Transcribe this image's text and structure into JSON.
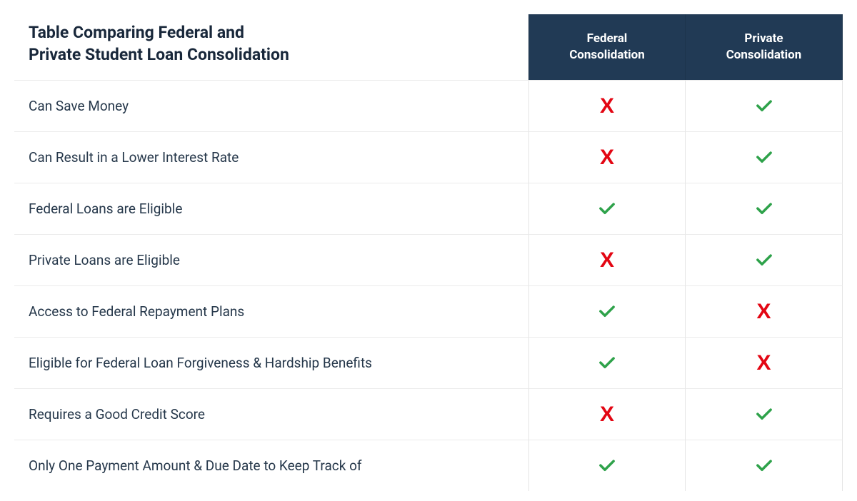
{
  "title": "Table Comparing Federal and\nPrivate Student Loan Consolidation",
  "colors": {
    "header_bg": "#213a55",
    "header_text": "#ffffff",
    "title_text": "#18273a",
    "feature_text": "#25374a",
    "check": "#2ea24a",
    "x": "#e30613",
    "row_border": "rgba(0,0,0,0.08)"
  },
  "columns": [
    {
      "id": "federal",
      "label": "Federal\nConsolidation"
    },
    {
      "id": "private",
      "label": "Private\nConsolidation"
    }
  ],
  "rows": [
    {
      "feature": "Can Save Money",
      "federal": "x",
      "private": "check"
    },
    {
      "feature": "Can Result in a Lower Interest Rate",
      "federal": "x",
      "private": "check"
    },
    {
      "feature": "Federal Loans are Eligible",
      "federal": "check",
      "private": "check"
    },
    {
      "feature": "Private Loans are Eligible",
      "federal": "x",
      "private": "check"
    },
    {
      "feature": "Access to Federal Repayment Plans",
      "federal": "check",
      "private": "x"
    },
    {
      "feature": "Eligible for Federal Loan Forgiveness & Hardship Benefits",
      "federal": "check",
      "private": "x"
    },
    {
      "feature": "Requires a Good Credit Score",
      "federal": "x",
      "private": "check"
    },
    {
      "feature": "Only One Payment Amount & Due Date to Keep Track of",
      "federal": "check",
      "private": "check"
    }
  ]
}
